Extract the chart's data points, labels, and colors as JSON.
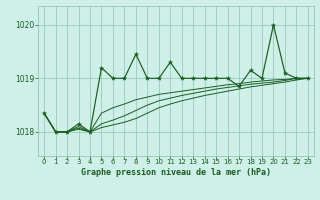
{
  "title": "Graphe pression niveau de la mer (hPa)",
  "background_color": "#cef0e8",
  "grid_color": "#99ccbb",
  "line_color": "#1a5c22",
  "ylim": [
    1017.55,
    1020.35
  ],
  "xlim": [
    -0.5,
    23.5
  ],
  "yticks": [
    1018,
    1019,
    1020
  ],
  "xticks": [
    0,
    1,
    2,
    3,
    4,
    5,
    6,
    7,
    8,
    9,
    10,
    11,
    12,
    13,
    14,
    15,
    16,
    17,
    18,
    19,
    20,
    21,
    22,
    23
  ],
  "series_main": [
    1018.35,
    1018.0,
    1018.0,
    1018.15,
    1018.0,
    1019.2,
    1019.0,
    1019.0,
    1019.45,
    1019.0,
    1019.0,
    1019.3,
    1019.0,
    1019.0,
    1019.0,
    1019.0,
    1019.0,
    1018.85,
    1019.15,
    1019.0,
    1020.0,
    1019.1,
    1019.0,
    1019.0
  ],
  "series_a": [
    1018.35,
    1018.0,
    1018.0,
    1018.1,
    1018.0,
    1018.35,
    1018.45,
    1018.52,
    1018.6,
    1018.65,
    1018.7,
    1018.73,
    1018.76,
    1018.79,
    1018.82,
    1018.85,
    1018.88,
    1018.9,
    1018.93,
    1018.95,
    1018.97,
    1018.98,
    1019.0,
    1019.0
  ],
  "series_b": [
    1018.35,
    1018.0,
    1018.0,
    1018.07,
    1018.0,
    1018.15,
    1018.22,
    1018.3,
    1018.4,
    1018.5,
    1018.58,
    1018.63,
    1018.68,
    1018.72,
    1018.76,
    1018.8,
    1018.83,
    1018.86,
    1018.89,
    1018.91,
    1018.93,
    1018.96,
    1019.0,
    1019.0
  ],
  "series_c": [
    1018.35,
    1018.0,
    1018.0,
    1018.05,
    1018.0,
    1018.08,
    1018.13,
    1018.18,
    1018.25,
    1018.35,
    1018.45,
    1018.52,
    1018.58,
    1018.63,
    1018.68,
    1018.72,
    1018.76,
    1018.8,
    1018.84,
    1018.87,
    1018.9,
    1018.93,
    1018.97,
    1019.0
  ]
}
